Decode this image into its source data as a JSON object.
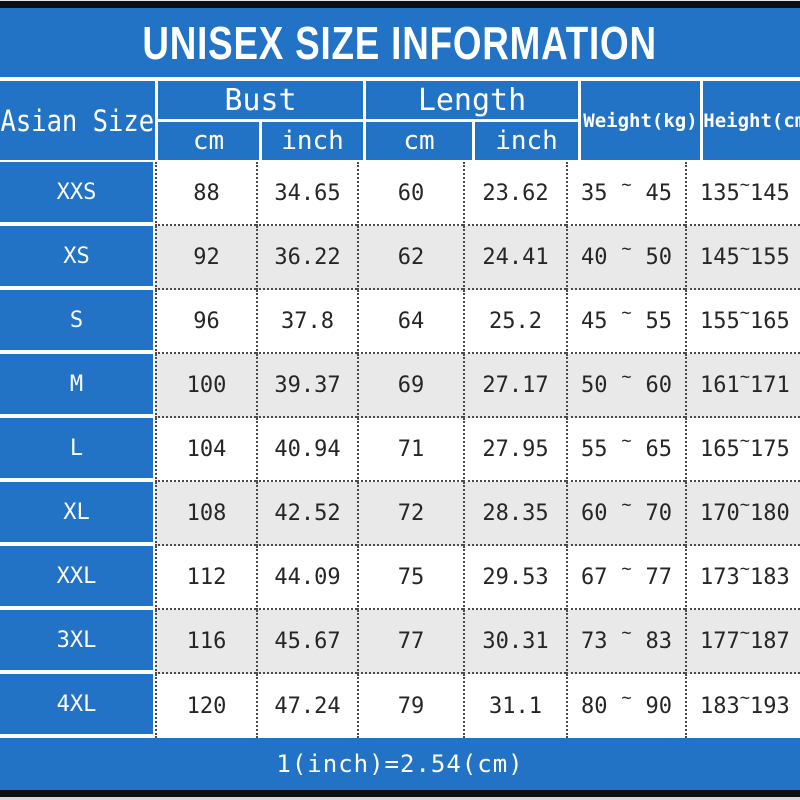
{
  "title": "UNISEX SIZE INFORMATION",
  "note": "1(inch)=2.54(cm)",
  "tilde": "~",
  "colors": {
    "blue": "#2273c5",
    "bar-dark": "#0e0e15",
    "row-alt": "#e9e9e9",
    "row-main": "#ffffff",
    "ink": "#262626",
    "dot": "#4a4a4a"
  },
  "header": {
    "size_col": "Asian Size",
    "bust": "Bust",
    "length": "Length",
    "weight": "Weight(kg)",
    "height": "Height(cm)",
    "unit_cm": "cm",
    "unit_inch": "inch"
  },
  "rows": [
    {
      "size": "XXS",
      "bust_cm": "88",
      "bust_inch": "34.65",
      "length_cm": "60",
      "length_inch": "23.62",
      "weight_min": "35",
      "weight_max": "45",
      "height_min": "135",
      "height_max": "145"
    },
    {
      "size": "XS",
      "bust_cm": "92",
      "bust_inch": "36.22",
      "length_cm": "62",
      "length_inch": "24.41",
      "weight_min": "40",
      "weight_max": "50",
      "height_min": "145",
      "height_max": "155"
    },
    {
      "size": "S",
      "bust_cm": "96",
      "bust_inch": "37.8",
      "length_cm": "64",
      "length_inch": "25.2",
      "weight_min": "45",
      "weight_max": "55",
      "height_min": "155",
      "height_max": "165"
    },
    {
      "size": "M",
      "bust_cm": "100",
      "bust_inch": "39.37",
      "length_cm": "69",
      "length_inch": "27.17",
      "weight_min": "50",
      "weight_max": "60",
      "height_min": "161",
      "height_max": "171"
    },
    {
      "size": "L",
      "bust_cm": "104",
      "bust_inch": "40.94",
      "length_cm": "71",
      "length_inch": "27.95",
      "weight_min": "55",
      "weight_max": "65",
      "height_min": "165",
      "height_max": "175"
    },
    {
      "size": "XL",
      "bust_cm": "108",
      "bust_inch": "42.52",
      "length_cm": "72",
      "length_inch": "28.35",
      "weight_min": "60",
      "weight_max": "70",
      "height_min": "170",
      "height_max": "180"
    },
    {
      "size": "XXL",
      "bust_cm": "112",
      "bust_inch": "44.09",
      "length_cm": "75",
      "length_inch": "29.53",
      "weight_min": "67",
      "weight_max": "77",
      "height_min": "173",
      "height_max": "183"
    },
    {
      "size": "3XL",
      "bust_cm": "116",
      "bust_inch": "45.67",
      "length_cm": "77",
      "length_inch": "30.31",
      "weight_min": "73",
      "weight_max": "83",
      "height_min": "177",
      "height_max": "187"
    },
    {
      "size": "4XL",
      "bust_cm": "120",
      "bust_inch": "47.24",
      "length_cm": "79",
      "length_inch": "31.1",
      "weight_min": "80",
      "weight_max": "90",
      "height_min": "183",
      "height_max": "193"
    }
  ],
  "chart_data": {
    "type": "table",
    "title": "UNISEX SIZE INFORMATION",
    "columns": [
      "Asian Size",
      "Bust cm",
      "Bust inch",
      "Length cm",
      "Length inch",
      "Weight(kg)",
      "Height(cm)"
    ],
    "rows": [
      [
        "XXS",
        88,
        34.65,
        60,
        23.62,
        "35~45",
        "135~145"
      ],
      [
        "XS",
        92,
        36.22,
        62,
        24.41,
        "40~50",
        "145~155"
      ],
      [
        "S",
        96,
        37.8,
        64,
        25.2,
        "45~55",
        "155~165"
      ],
      [
        "M",
        100,
        39.37,
        69,
        27.17,
        "50~60",
        "161~171"
      ],
      [
        "L",
        104,
        40.94,
        71,
        27.95,
        "55~65",
        "165~175"
      ],
      [
        "XL",
        108,
        42.52,
        72,
        28.35,
        "60~70",
        "170~180"
      ],
      [
        "XXL",
        112,
        44.09,
        75,
        29.53,
        "67~77",
        "173~183"
      ],
      [
        "3XL",
        116,
        45.67,
        77,
        30.31,
        "73~83",
        "177~187"
      ],
      [
        "4XL",
        120,
        47.24,
        79,
        31.1,
        "80~90",
        "183~193"
      ]
    ],
    "note": "1(inch)=2.54(cm)"
  }
}
